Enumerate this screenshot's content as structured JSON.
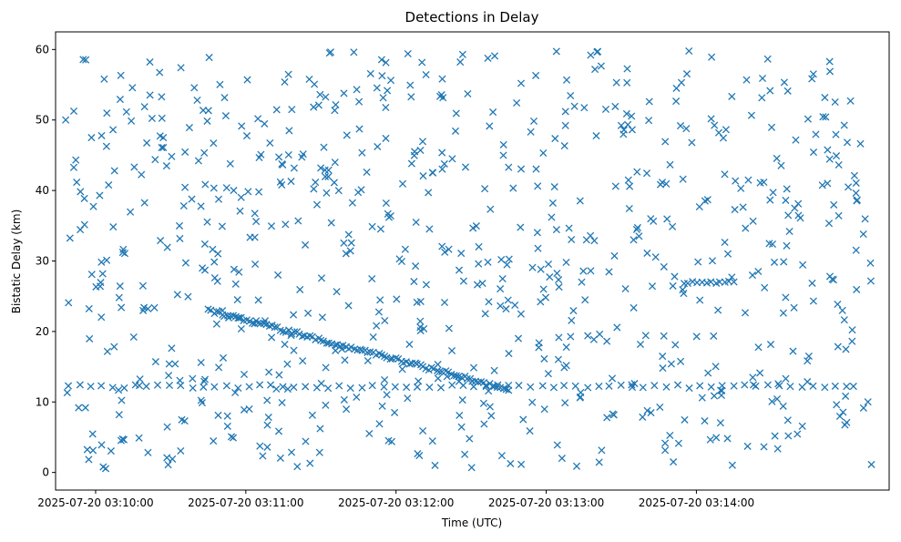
{
  "chart_data": {
    "type": "scatter",
    "title": "Detections in Delay",
    "xlabel": "Time (UTC)",
    "ylabel": "Bistatic Delay (km)",
    "marker": "x",
    "color": "#1f77b4",
    "grid": false,
    "legend": "none",
    "xlim": [
      "2025-07-20 03:09:44",
      "2025-07-20 03:15:17"
    ],
    "ylim": [
      -2.5,
      62.5
    ],
    "xticks": [
      "2025-07-20 03:10:00",
      "2025-07-20 03:11:00",
      "2025-07-20 03:12:00",
      "2025-07-20 03:13:00",
      "2025-07-20 03:14:00"
    ],
    "yticks": [
      0,
      10,
      20,
      30,
      40,
      50,
      60
    ],
    "series": [
      {
        "tracks": [
          {
            "label": "descending track",
            "start": "2025-07-20 03:10:45",
            "end": "2025-07-20 03:12:45",
            "y_start": 23.0,
            "y_end": 11.8,
            "count": 110
          },
          {
            "label": "near-constant track",
            "start": "2025-07-20 03:09:49",
            "end": "2025-07-20 03:15:00",
            "y": 12.2,
            "count": 70
          },
          {
            "label": "short track",
            "start": "2025-07-20 03:13:55",
            "end": "2025-07-20 03:14:15",
            "y": 27.0,
            "count": 12
          }
        ],
        "clutter": {
          "y_range": [
            0.5,
            59.8
          ],
          "count": 760
        }
      }
    ]
  }
}
